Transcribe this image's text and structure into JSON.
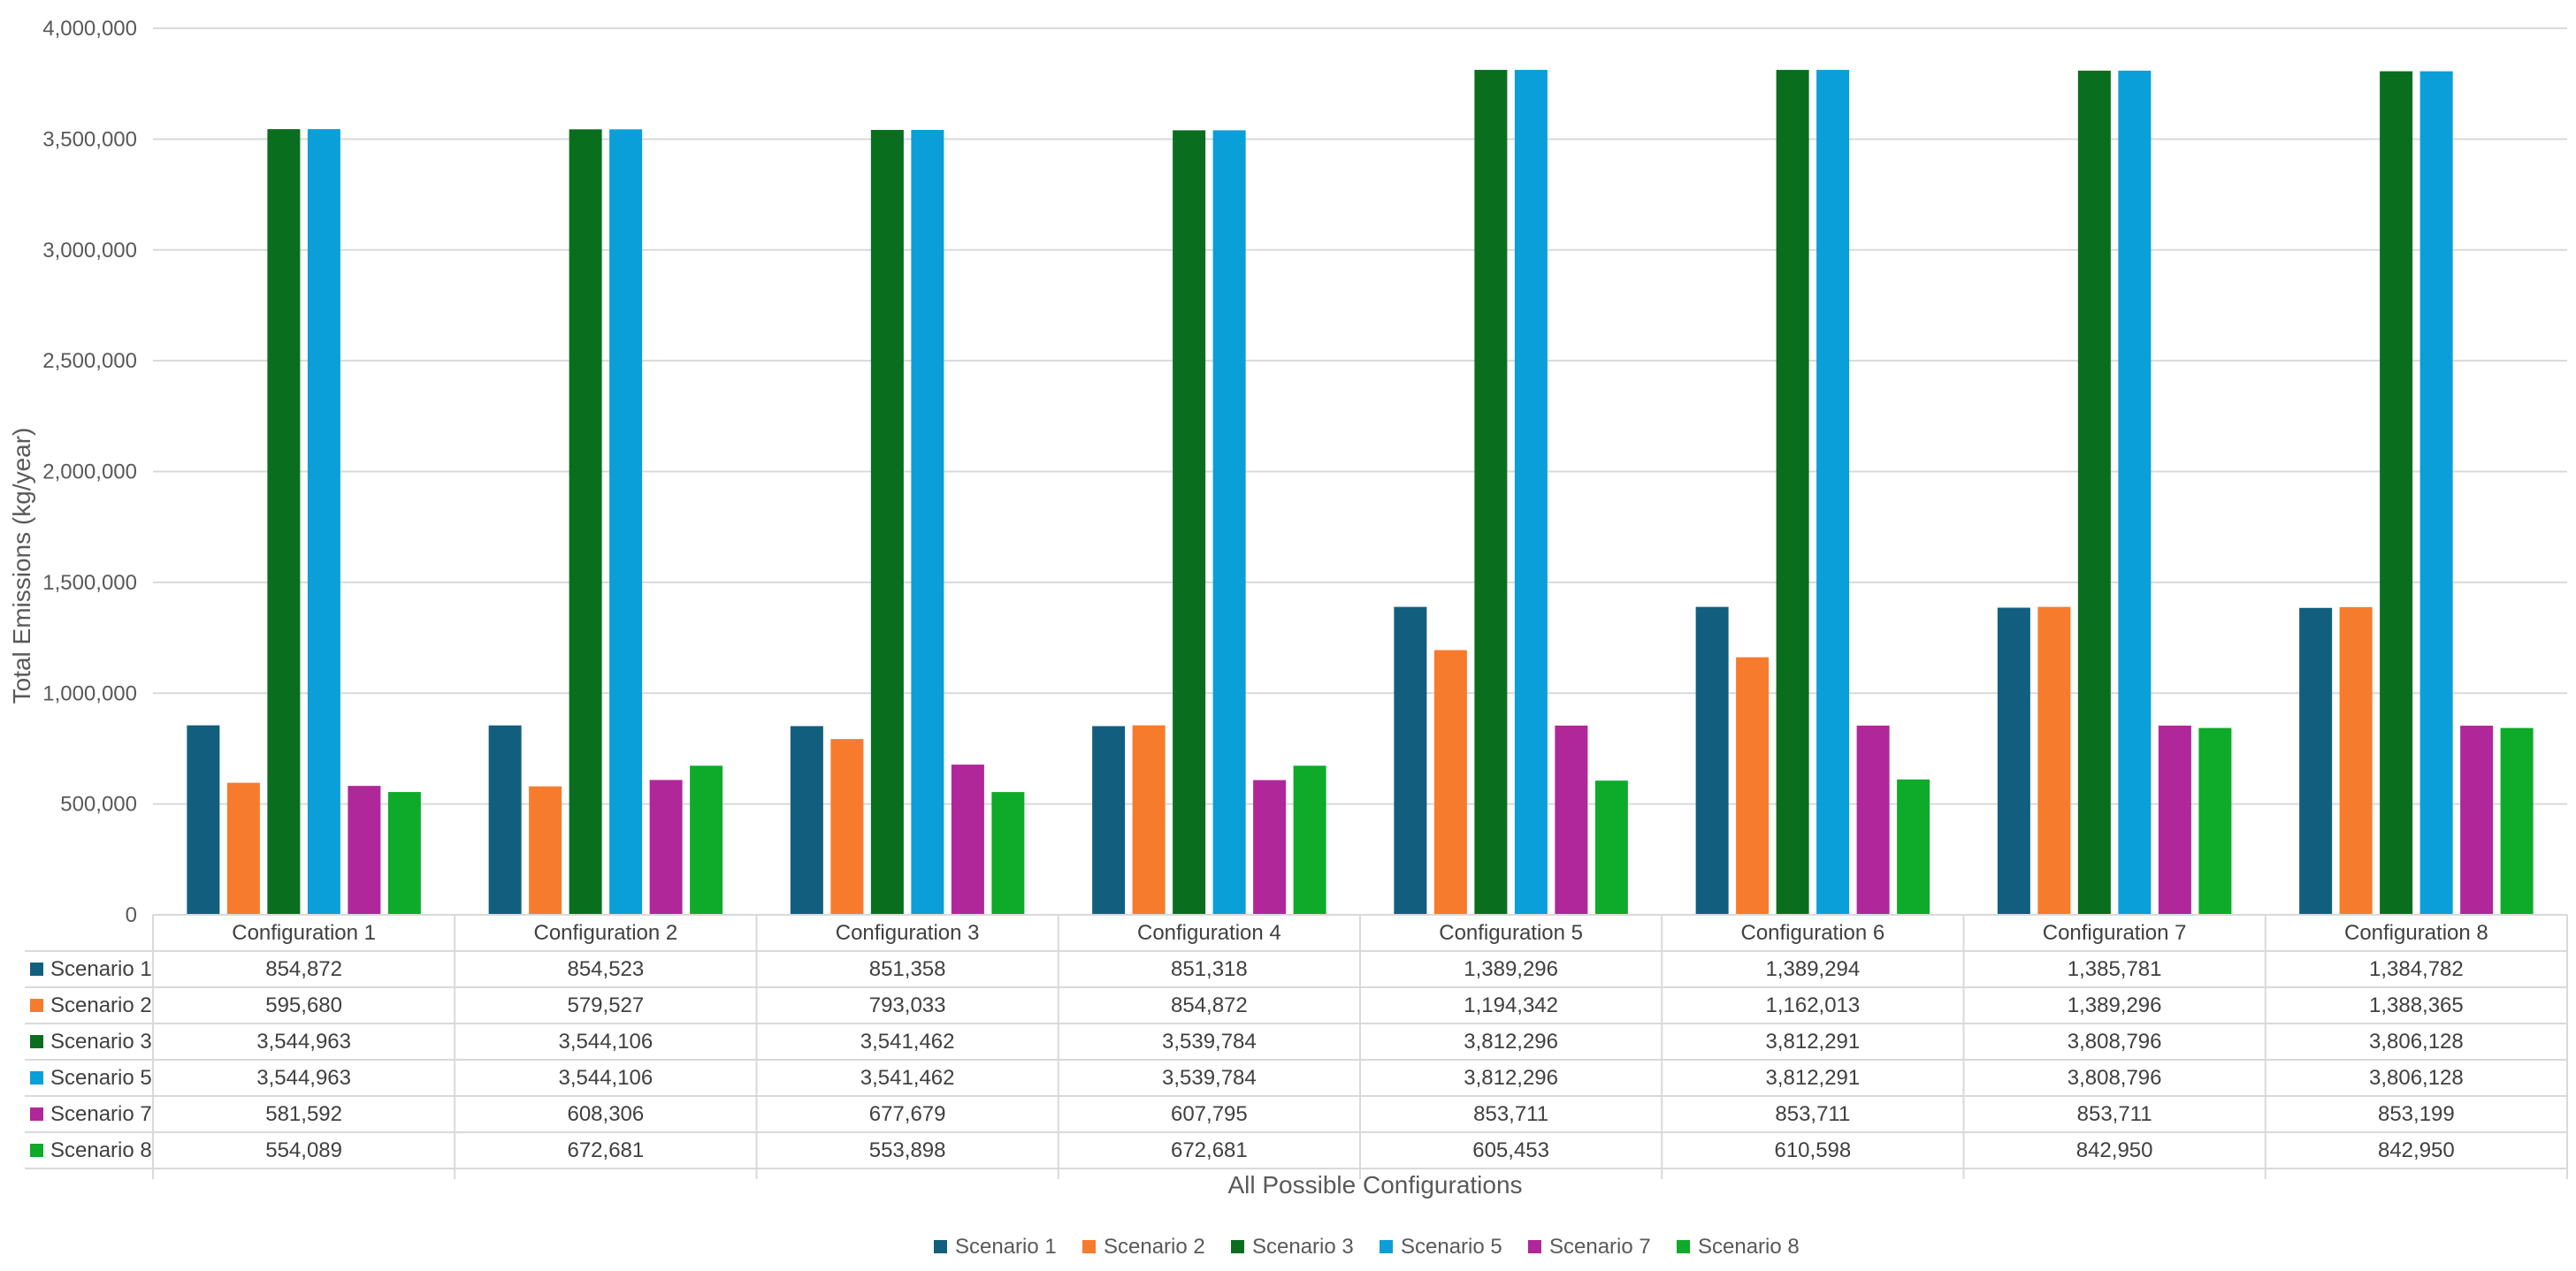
{
  "chart_data": {
    "type": "bar",
    "ylabel": "Total Emissions (kg/year)",
    "xlabel": "All Possible Configurations",
    "ylim": [
      0,
      4000000
    ],
    "yticks": [
      0,
      500000,
      1000000,
      1500000,
      2000000,
      2500000,
      3000000,
      3500000,
      4000000
    ],
    "ytick_labels": [
      "0",
      "500,000",
      "1,000,000",
      "1,500,000",
      "2,000,000",
      "2,500,000",
      "3,000,000",
      "3,500,000",
      "4,000,000"
    ],
    "grid": true,
    "legend_position": "bottom",
    "data_table": true,
    "categories": [
      "Configuration 1",
      "Configuration 2",
      "Configuration 3",
      "Configuration 4",
      "Configuration 5",
      "Configuration 6",
      "Configuration 7",
      "Configuration 8"
    ],
    "series": [
      {
        "name": "Scenario 1",
        "color": "#125E7F",
        "values": [
          854872,
          854523,
          851358,
          851318,
          1389296,
          1389294,
          1385781,
          1384782
        ],
        "labels": [
          "854,872",
          "854,523",
          "851,358",
          "851,318",
          "1,389,296",
          "1,389,294",
          "1,385,781",
          "1,384,782"
        ]
      },
      {
        "name": "Scenario 2",
        "color": "#F77B2C",
        "values": [
          595680,
          579527,
          793033,
          854872,
          1194342,
          1162013,
          1389296,
          1388365
        ],
        "labels": [
          "595,680",
          "579,527",
          "793,033",
          "854,872",
          "1,194,342",
          "1,162,013",
          "1,389,296",
          "1,388,365"
        ]
      },
      {
        "name": "Scenario 3",
        "color": "#0A6E1F",
        "values": [
          3544963,
          3544106,
          3541462,
          3539784,
          3812296,
          3812291,
          3808796,
          3806128
        ],
        "labels": [
          "3,544,963",
          "3,544,106",
          "3,541,462",
          "3,539,784",
          "3,812,296",
          "3,812,291",
          "3,808,796",
          "3,806,128"
        ]
      },
      {
        "name": "Scenario 5",
        "color": "#0A9FD8",
        "values": [
          3544963,
          3544106,
          3541462,
          3539784,
          3812296,
          3812291,
          3808796,
          3806128
        ],
        "labels": [
          "3,544,963",
          "3,544,106",
          "3,541,462",
          "3,539,784",
          "3,812,296",
          "3,812,291",
          "3,808,796",
          "3,806,128"
        ]
      },
      {
        "name": "Scenario 7",
        "color": "#B0279A",
        "values": [
          581592,
          608306,
          677679,
          607795,
          853711,
          853711,
          853711,
          853199
        ],
        "labels": [
          "581,592",
          "608,306",
          "677,679",
          "607,795",
          "853,711",
          "853,711",
          "853,711",
          "853,199"
        ]
      },
      {
        "name": "Scenario 8",
        "color": "#0EAA2A",
        "values": [
          554089,
          672681,
          553898,
          672681,
          605453,
          610598,
          842950,
          842950
        ],
        "labels": [
          "554,089",
          "672,681",
          "553,898",
          "672,681",
          "605,453",
          "610,598",
          "842,950",
          "842,950"
        ]
      }
    ]
  }
}
